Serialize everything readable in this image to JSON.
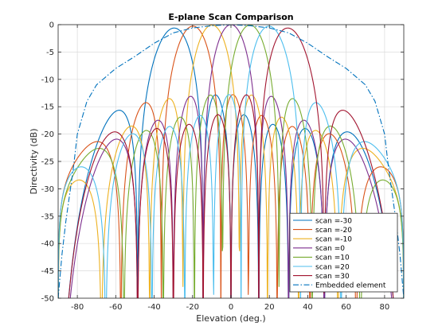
{
  "chart_data": {
    "type": "line",
    "title": "E-plane Scan Comparison",
    "xlabel": "Elevation (deg.)",
    "ylabel": "Directivity (dB)",
    "xlim": [
      -90,
      90
    ],
    "ylim": [
      -50,
      0
    ],
    "xticks": [
      -80,
      -60,
      -40,
      -20,
      0,
      20,
      40,
      60,
      80
    ],
    "yticks": [
      0,
      -5,
      -10,
      -15,
      -20,
      -25,
      -30,
      -35,
      -40,
      -45,
      -50
    ],
    "grid": true,
    "legend_position": "bottom-right",
    "array_elements": 8,
    "series": [
      {
        "name": "scan =-30",
        "scan": -30,
        "color": "#0072BD",
        "style": "solid"
      },
      {
        "name": "scan =-20",
        "scan": -20,
        "color": "#D95319",
        "style": "solid"
      },
      {
        "name": "scan =-10",
        "scan": -10,
        "color": "#EDB120",
        "style": "solid"
      },
      {
        "name": "scan =0",
        "scan": 0,
        "color": "#7E2F8E",
        "style": "solid"
      },
      {
        "name": "scan =10",
        "scan": 10,
        "color": "#77AC30",
        "style": "solid"
      },
      {
        "name": "scan =20",
        "scan": 20,
        "color": "#4DBEEE",
        "style": "solid"
      },
      {
        "name": "scan =30",
        "scan": 30,
        "color": "#A2142F",
        "style": "solid"
      },
      {
        "name": "Embedded element",
        "color": "#0072BD",
        "style": "dashdot",
        "x": [
          -90,
          -88,
          -86,
          -84,
          -82,
          -80,
          -75,
          -70,
          -60,
          -50,
          -40,
          -30,
          -20,
          -10,
          0,
          10,
          20,
          30,
          40,
          50,
          60,
          70,
          75,
          80,
          82,
          84,
          86,
          88,
          90
        ],
        "y": [
          -50,
          -42,
          -36,
          -31,
          -26,
          -20,
          -14,
          -11,
          -8,
          -5.8,
          -3.4,
          -1.5,
          -0.6,
          -0.2,
          0,
          -0.2,
          -0.6,
          -1.5,
          -3.4,
          -5.8,
          -8,
          -11,
          -14,
          -20,
          -26,
          -31,
          -36,
          -42,
          -50
        ]
      }
    ]
  }
}
